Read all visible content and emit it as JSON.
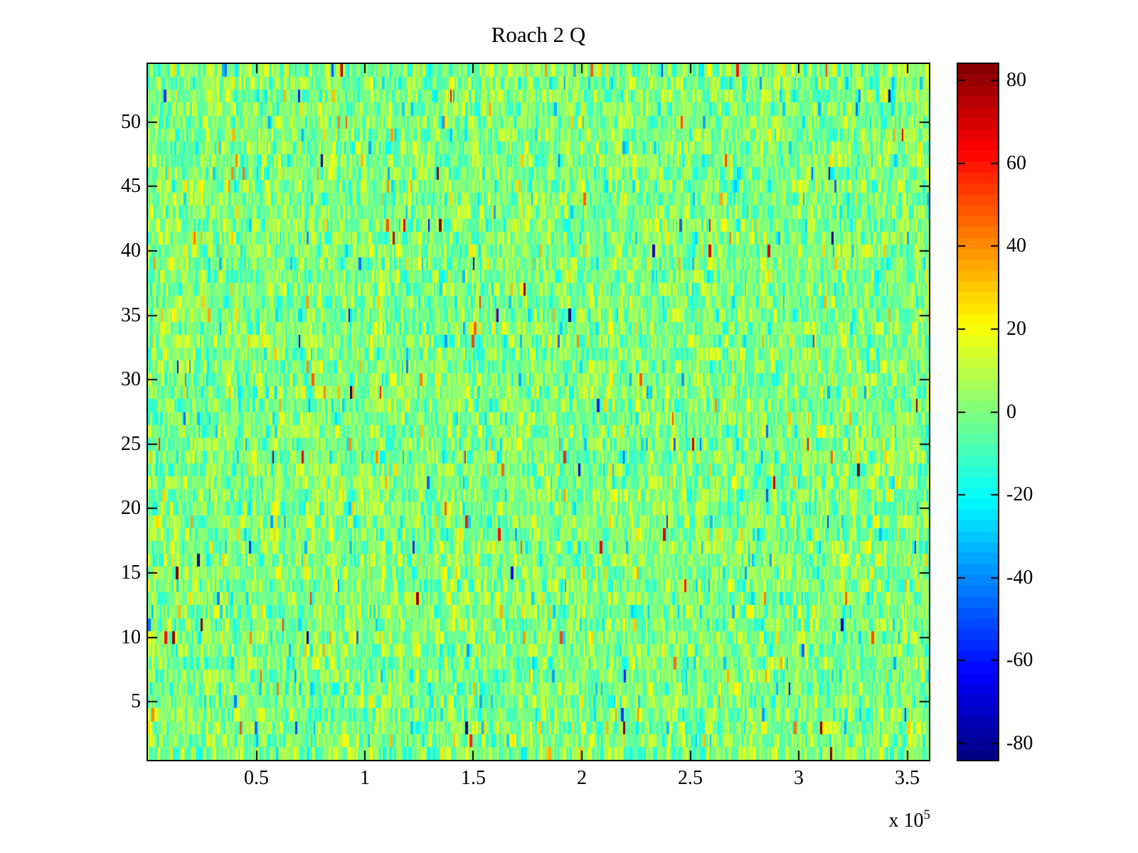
{
  "chart_data": {
    "type": "heatmap",
    "title": "Roach 2 Q",
    "colormap": "jet",
    "grid": false,
    "x_axis": {
      "tick_labels": [
        "0.5",
        "1",
        "1.5",
        "2",
        "2.5",
        "3",
        "3.5"
      ],
      "tick_values": [
        0.5,
        1,
        1.5,
        2,
        2.5,
        3,
        3.5
      ],
      "range": [
        0,
        3.6
      ],
      "scale_per_unit": 100000,
      "multiplier_base": "x 10",
      "multiplier_exponent": "5"
    },
    "y_axis": {
      "tick_labels": [
        "5",
        "10",
        "15",
        "20",
        "25",
        "30",
        "35",
        "40",
        "45",
        "50"
      ],
      "tick_values": [
        5,
        10,
        15,
        20,
        25,
        30,
        35,
        40,
        45,
        50
      ],
      "range": [
        0.5,
        54.5
      ],
      "rows": 54
    },
    "colorbar": {
      "tick_labels": [
        "80",
        "60",
        "40",
        "20",
        "0",
        "-20",
        "-40",
        "-60",
        "-80"
      ],
      "tick_values": [
        80,
        60,
        40,
        20,
        0,
        -20,
        -40,
        -60,
        -80
      ],
      "range": [
        -84,
        84
      ],
      "levels": 64,
      "position": "right"
    },
    "noise_model": {
      "mean": 0,
      "sigma": 11,
      "outlier_fraction": 0.025,
      "outlier_sigma": 38,
      "seed": 11
    }
  },
  "colors": {
    "background": "#ffffff",
    "frame": "#000000",
    "text": "#000000",
    "zero_value_green": "#80ff80"
  }
}
